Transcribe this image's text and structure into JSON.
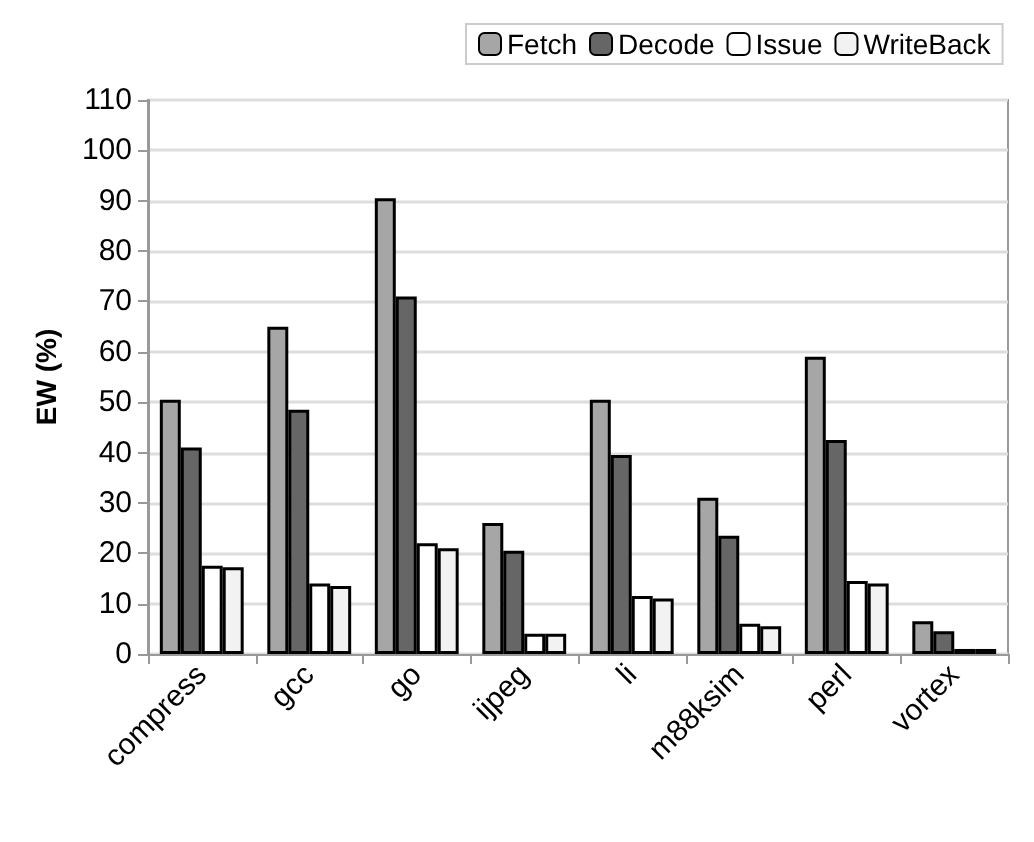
{
  "chart_data": {
    "type": "bar",
    "ylabel": "EW (%)",
    "categories": [
      "compress",
      "gcc",
      "go",
      "ijpeg",
      "li",
      "m88ksim",
      "perl",
      "vortex"
    ],
    "series": [
      {
        "name": "Fetch",
        "color": "#a6a6a6",
        "values": [
          50.5,
          65,
          90.5,
          26,
          50.5,
          31,
          59,
          6.5
        ]
      },
      {
        "name": "Decode",
        "color": "#666666",
        "values": [
          41,
          48.5,
          71,
          20.5,
          39.5,
          23.5,
          42.5,
          4.5
        ]
      },
      {
        "name": "Issue",
        "color": "#ffffff",
        "values": [
          17.5,
          14,
          22,
          4,
          11.5,
          6,
          14.5,
          1
        ]
      },
      {
        "name": "WriteBack",
        "color": "#f2f2f2",
        "values": [
          17.2,
          13.5,
          21,
          4,
          11,
          5.5,
          14,
          1
        ]
      }
    ],
    "ylim": [
      0,
      110
    ],
    "yticks": [
      0,
      10,
      20,
      30,
      40,
      50,
      60,
      70,
      80,
      90,
      100,
      110
    ],
    "grid": "y",
    "legend": "top"
  }
}
